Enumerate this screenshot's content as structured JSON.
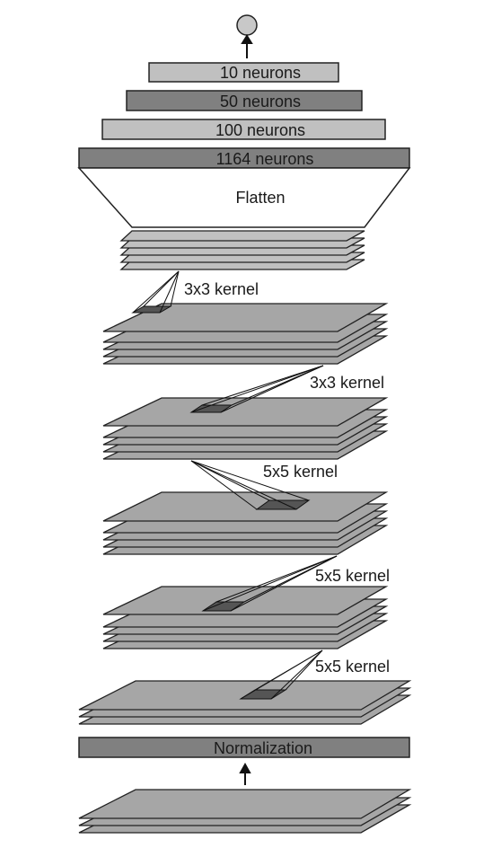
{
  "layers": {
    "dense_10": "10 neurons",
    "dense_50": "50 neurons",
    "dense_100": "100 neurons",
    "dense_1164": "1164 neurons",
    "flatten": "Flatten",
    "normalization": "Normalization"
  },
  "kernels": {
    "conv5": "3x3 kernel",
    "conv4": "3x3 kernel",
    "conv3": "5x5 kernel",
    "conv2": "5x5 kernel",
    "conv1": "5x5 kernel"
  },
  "colors": {
    "light_gray": "#c0c0c0",
    "mid_gray": "#a6a6a6",
    "dark_gray": "#808080",
    "kernel_fill": "#555555",
    "stroke": "#222222"
  }
}
